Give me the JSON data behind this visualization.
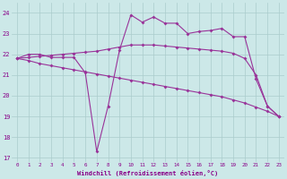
{
  "line1": {
    "x": [
      0,
      1,
      2,
      3,
      4,
      5,
      6,
      7,
      8,
      9,
      10,
      11,
      12,
      13,
      14,
      15,
      16,
      17,
      18,
      19,
      20,
      21,
      22,
      23
    ],
    "y": [
      21.8,
      22.0,
      22.0,
      21.85,
      21.85,
      21.85,
      21.1,
      17.3,
      19.5,
      22.2,
      23.9,
      23.55,
      23.8,
      23.5,
      23.5,
      23.0,
      23.1,
      23.15,
      23.25,
      22.85,
      22.85,
      20.8,
      19.5,
      19.0
    ]
  },
  "line2": {
    "x": [
      0,
      1,
      2,
      3,
      4,
      5,
      6,
      7,
      8,
      9,
      10,
      11,
      12,
      13,
      14,
      15,
      16,
      17,
      18,
      19,
      20,
      21,
      22,
      23
    ],
    "y": [
      21.8,
      21.85,
      21.9,
      21.95,
      22.0,
      22.05,
      22.1,
      22.15,
      22.25,
      22.35,
      22.45,
      22.45,
      22.45,
      22.4,
      22.35,
      22.3,
      22.25,
      22.2,
      22.15,
      22.05,
      21.8,
      21.0,
      19.5,
      19.0
    ]
  },
  "line3": {
    "x": [
      0,
      1,
      2,
      3,
      4,
      5,
      6,
      7,
      8,
      9,
      10,
      11,
      12,
      13,
      14,
      15,
      16,
      17,
      18,
      19,
      20,
      21,
      22,
      23
    ],
    "y": [
      21.8,
      21.7,
      21.55,
      21.45,
      21.35,
      21.25,
      21.15,
      21.05,
      20.95,
      20.85,
      20.75,
      20.65,
      20.55,
      20.45,
      20.35,
      20.25,
      20.15,
      20.05,
      19.95,
      19.8,
      19.65,
      19.45,
      19.25,
      19.0
    ]
  },
  "line_color": "#993399",
  "marker": "D",
  "markersize": 2.0,
  "linewidth": 0.8,
  "xlabel": "Windchill (Refroidissement éolien,°C)",
  "xlim": [
    -0.5,
    23.5
  ],
  "ylim": [
    16.8,
    24.5
  ],
  "yticks": [
    17,
    18,
    19,
    20,
    21,
    22,
    23,
    24
  ],
  "xticks": [
    0,
    1,
    2,
    3,
    4,
    5,
    6,
    7,
    8,
    9,
    10,
    11,
    12,
    13,
    14,
    15,
    16,
    17,
    18,
    19,
    20,
    21,
    22,
    23
  ],
  "background_color": "#cce8e8",
  "grid_color": "#aacccc",
  "tick_color": "#880088",
  "label_color": "#880088"
}
